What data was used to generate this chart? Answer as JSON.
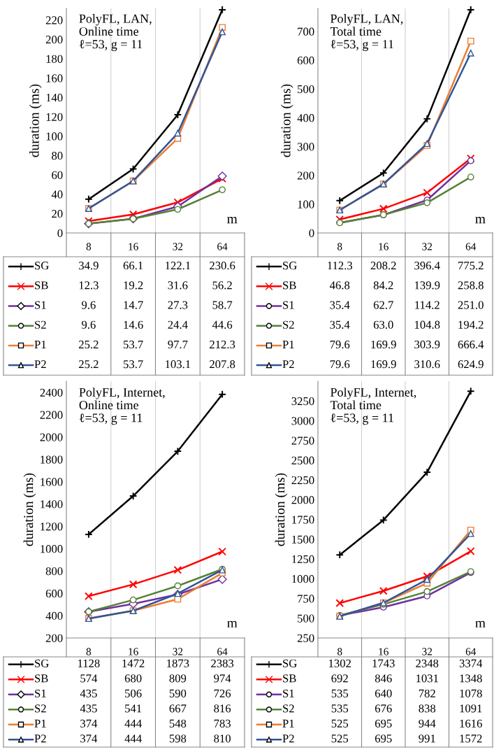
{
  "chart_data": [
    {
      "type": "line",
      "title": "PolyFL, LAN,\nOnline time\nℓ=53, g = 11",
      "xlabel": "m",
      "ylabel": "duration (ms)",
      "categories": [
        "8",
        "16",
        "32",
        "64"
      ],
      "ylim": [
        0,
        232
      ],
      "yticks": [
        0,
        20,
        40,
        60,
        80,
        100,
        120,
        140,
        160,
        180,
        200,
        220
      ],
      "grid": "x",
      "data_labels": true,
      "legend": "bottom",
      "series": [
        {
          "name": "SG",
          "color": "#000000",
          "marker": "plus",
          "values": [
            34.9,
            66.1,
            122.1,
            230.6
          ]
        },
        {
          "name": "SB",
          "color": "#ff0000",
          "marker": "cross",
          "values": [
            12.3,
            19.2,
            31.6,
            56.2
          ]
        },
        {
          "name": "S1",
          "color": "#7030a0",
          "marker": "diamond",
          "values": [
            9.6,
            14.7,
            27.3,
            58.7
          ]
        },
        {
          "name": "S2",
          "color": "#548235",
          "marker": "circle",
          "values": [
            9.6,
            14.6,
            24.4,
            44.6
          ]
        },
        {
          "name": "P1",
          "color": "#ed7d31",
          "marker": "square",
          "values": [
            25.2,
            53.7,
            97.7,
            212.3
          ]
        },
        {
          "name": "P2",
          "color": "#2f5597",
          "marker": "triangle",
          "values": [
            25.2,
            53.7,
            103.1,
            207.8
          ]
        }
      ]
    },
    {
      "type": "line",
      "title": "PolyFL, LAN,\nTotal time\nℓ=53, g = 11",
      "xlabel": "m",
      "ylabel": "duration (ms)",
      "categories": [
        "8",
        "16",
        "32",
        "64"
      ],
      "ylim": [
        0,
        780
      ],
      "yticks": [
        0,
        100,
        200,
        300,
        400,
        500,
        600,
        700
      ],
      "grid": "x",
      "data_labels": true,
      "legend": "bottom",
      "series": [
        {
          "name": "SG",
          "color": "#000000",
          "marker": "plus",
          "values": [
            112.3,
            208.2,
            396.4,
            775.2
          ]
        },
        {
          "name": "SB",
          "color": "#ff0000",
          "marker": "cross",
          "values": [
            46.8,
            84.2,
            139.9,
            258.8
          ]
        },
        {
          "name": "S1",
          "color": "#7030a0",
          "marker": "circle",
          "values": [
            35.4,
            62.7,
            114.2,
            251.0
          ],
          "value_labels": [
            "35.4",
            "62.7",
            "114.2",
            "251.0"
          ]
        },
        {
          "name": "S2",
          "color": "#548235",
          "marker": "circle",
          "values": [
            35.4,
            63.0,
            104.8,
            194.2
          ],
          "value_labels": [
            "35.4",
            "63.0",
            "104.8",
            "194.2"
          ]
        },
        {
          "name": "P1",
          "color": "#ed7d31",
          "marker": "square",
          "values": [
            79.6,
            169.9,
            303.9,
            666.4
          ]
        },
        {
          "name": "P2",
          "color": "#2f5597",
          "marker": "triangle",
          "values": [
            79.6,
            169.9,
            310.6,
            624.9
          ]
        }
      ]
    },
    {
      "type": "line",
      "title": "PolyFL, Internet,\nOnline time\nℓ=53, g = 11",
      "xlabel": "m",
      "ylabel": "duration (ms)",
      "categories": [
        "8",
        "16",
        "32",
        "64"
      ],
      "ylim": [
        200,
        2500
      ],
      "yticks": [
        200,
        400,
        600,
        800,
        1000,
        1200,
        1400,
        1600,
        1800,
        2000,
        2200,
        2400
      ],
      "grid": "x",
      "data_labels": true,
      "legend": "bottom",
      "series": [
        {
          "name": "SG",
          "color": "#000000",
          "marker": "plus",
          "values": [
            1128,
            1472,
            1873,
            2383
          ]
        },
        {
          "name": "SB",
          "color": "#ff0000",
          "marker": "cross",
          "values": [
            574,
            680,
            809,
            974
          ]
        },
        {
          "name": "S1",
          "color": "#7030a0",
          "marker": "diamond",
          "values": [
            435,
            506,
            590,
            726
          ]
        },
        {
          "name": "S2",
          "color": "#548235",
          "marker": "circle",
          "values": [
            435,
            541,
            667,
            816
          ]
        },
        {
          "name": "P1",
          "color": "#ed7d31",
          "marker": "square",
          "values": [
            374,
            444,
            548,
            783
          ]
        },
        {
          "name": "P2",
          "color": "#2f5597",
          "marker": "triangle",
          "values": [
            374,
            444,
            598,
            810
          ]
        }
      ]
    },
    {
      "type": "line",
      "title": "PolyFL, Internet,\nTotal time\nℓ=53, g = 11",
      "xlabel": "m",
      "ylabel": "duration (ms)",
      "categories": [
        "8",
        "16",
        "32",
        "64"
      ],
      "ylim": [
        250,
        3500
      ],
      "yticks": [
        250,
        500,
        750,
        1000,
        1250,
        1500,
        1750,
        2000,
        2250,
        2500,
        2750,
        3000,
        3250
      ],
      "grid": "x",
      "data_labels": true,
      "legend": "bottom",
      "series": [
        {
          "name": "SG",
          "color": "#000000",
          "marker": "plus",
          "values": [
            1302,
            1743,
            2348,
            3374
          ]
        },
        {
          "name": "SB",
          "color": "#ff0000",
          "marker": "cross",
          "values": [
            692,
            846,
            1031,
            1348
          ]
        },
        {
          "name": "S1",
          "color": "#7030a0",
          "marker": "circle",
          "values": [
            535,
            640,
            782,
            1078
          ]
        },
        {
          "name": "S2",
          "color": "#548235",
          "marker": "circle",
          "values": [
            535,
            676,
            838,
            1091
          ]
        },
        {
          "name": "P1",
          "color": "#ed7d31",
          "marker": "square",
          "values": [
            525,
            695,
            944,
            1616
          ]
        },
        {
          "name": "P2",
          "color": "#2f5597",
          "marker": "triangle",
          "values": [
            525,
            695,
            991,
            1572
          ]
        }
      ]
    }
  ]
}
